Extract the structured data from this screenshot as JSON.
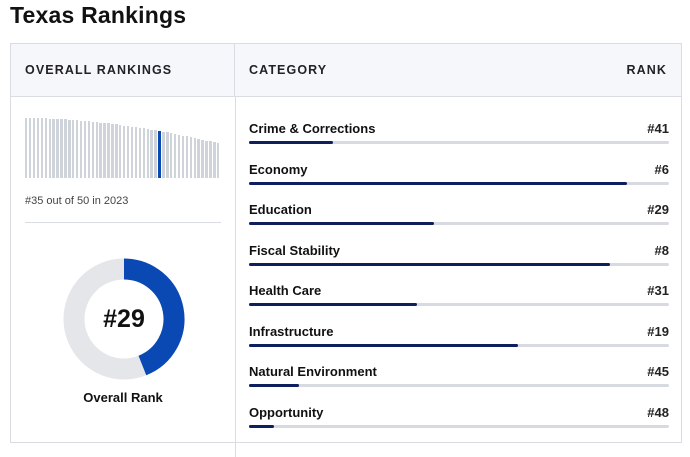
{
  "page": {
    "title": "Texas Rankings"
  },
  "overall": {
    "header": "OVERALL RANKINGS",
    "summary": "#35 out of 50 in 2023",
    "rank_label": "#29",
    "caption": "Overall Rank",
    "rank": 29,
    "total": 50,
    "rank_2023": 35,
    "accent_color": "#0a48b4",
    "track_color": "#e4e6ea"
  },
  "categories": {
    "header_category": "CATEGORY",
    "header_rank": "RANK",
    "total": 50,
    "fill_color": "#0d1f5c",
    "track_color": "#d7dae0",
    "items": [
      {
        "name": "Crime & Corrections",
        "rank_label": "#41",
        "rank": 41
      },
      {
        "name": "Economy",
        "rank_label": "#6",
        "rank": 6
      },
      {
        "name": "Education",
        "rank_label": "#29",
        "rank": 29
      },
      {
        "name": "Fiscal Stability",
        "rank_label": "#8",
        "rank": 8
      },
      {
        "name": "Health Care",
        "rank_label": "#31",
        "rank": 31
      },
      {
        "name": "Infrastructure",
        "rank_label": "#19",
        "rank": 19
      },
      {
        "name": "Natural Environment",
        "rank_label": "#45",
        "rank": 45
      },
      {
        "name": "Opportunity",
        "rank_label": "#48",
        "rank": 48
      }
    ]
  }
}
